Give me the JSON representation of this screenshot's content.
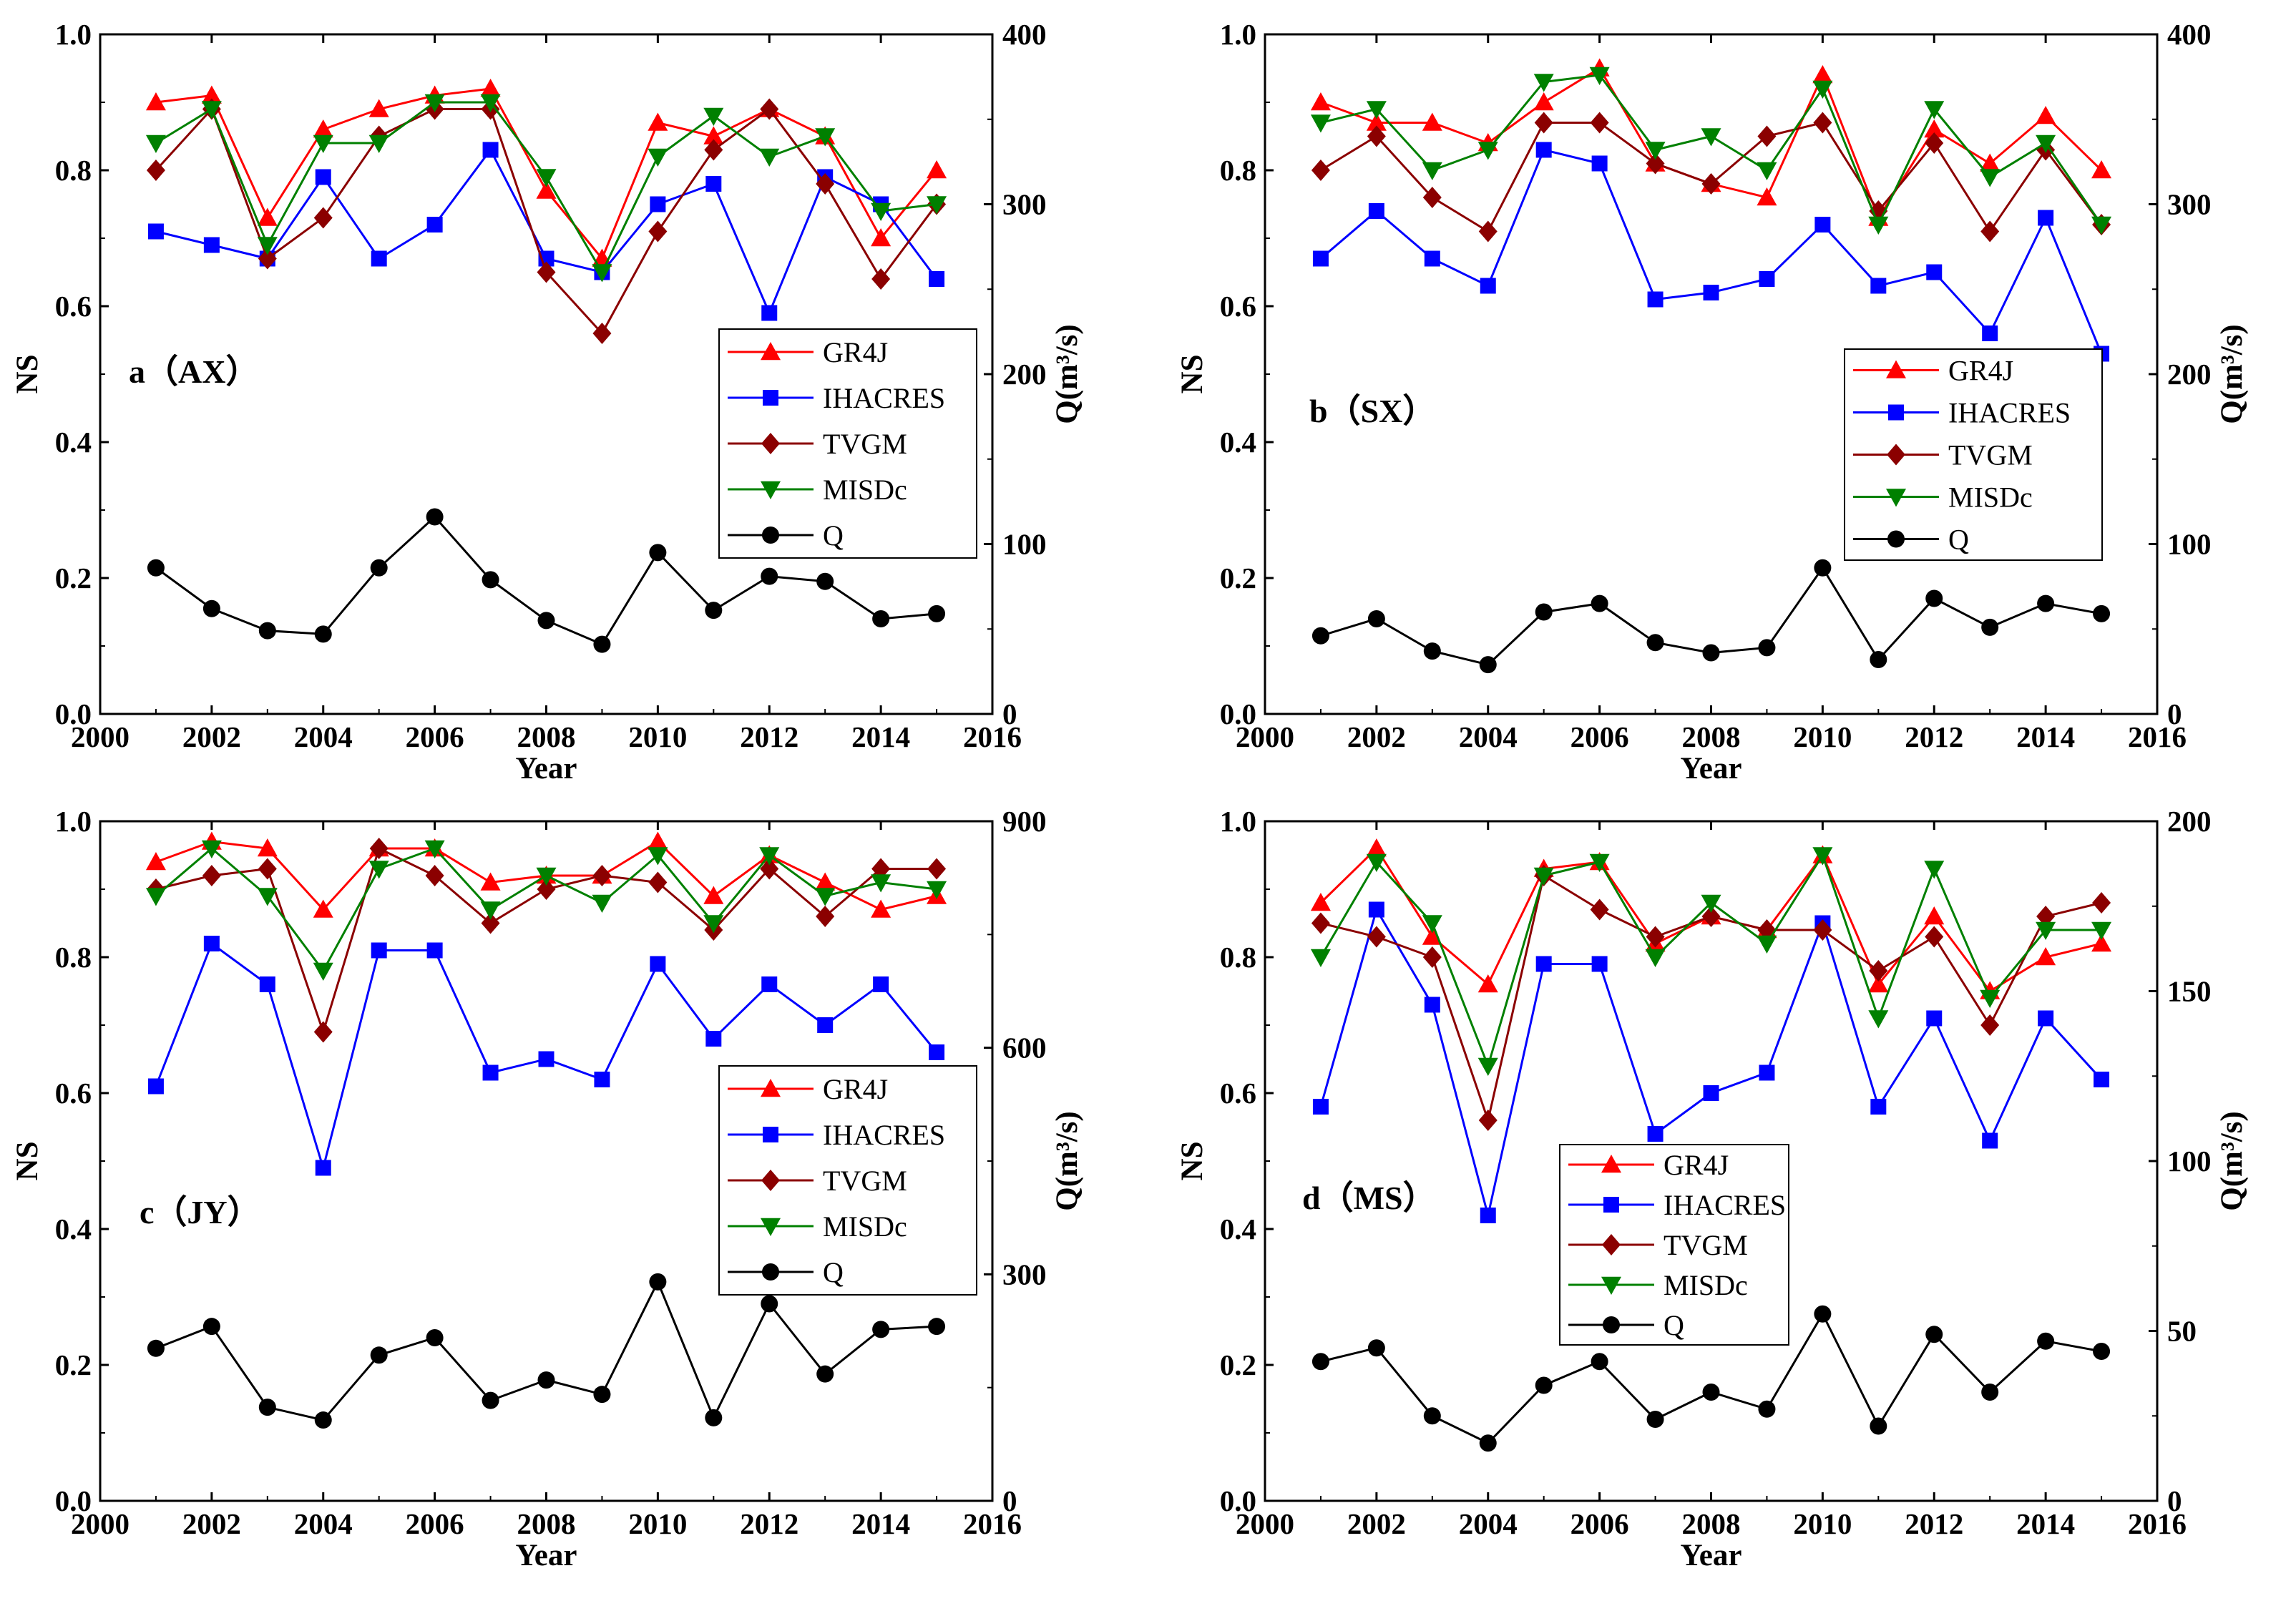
{
  "chart_data": [
    {
      "type": "line",
      "panel_label": "a（AX）",
      "xlabel": "Year",
      "ylabel": "NS",
      "ylabel_right": "Q(m³/s)",
      "xlim": [
        2000,
        2016
      ],
      "ylim": [
        0,
        1
      ],
      "y2lim": [
        0,
        400
      ],
      "xticks": [
        "2000",
        "2002",
        "2004",
        "2006",
        "2008",
        "2010",
        "2012",
        "2014",
        "2016"
      ],
      "yticks": [
        "0.0",
        "0.2",
        "0.4",
        "0.6",
        "0.8",
        "1.0"
      ],
      "y2ticks": [
        "0",
        "100",
        "200",
        "300",
        "400"
      ],
      "legend_position": "middle-right",
      "x": [
        2001,
        2002,
        2003,
        2004,
        2005,
        2006,
        2007,
        2008,
        2009,
        2010,
        2011,
        2012,
        2013,
        2014,
        2015
      ],
      "series": [
        {
          "name": "GR4J",
          "color": "#ff0000",
          "marker": "triangle-up",
          "axis": "left",
          "values": [
            0.9,
            0.91,
            0.73,
            0.86,
            0.89,
            0.91,
            0.92,
            0.77,
            0.67,
            0.87,
            0.85,
            0.89,
            0.85,
            0.7,
            0.8
          ]
        },
        {
          "name": "IHACRES",
          "color": "#0000ff",
          "marker": "square",
          "axis": "left",
          "values": [
            0.71,
            0.69,
            0.67,
            0.79,
            0.67,
            0.72,
            0.83,
            0.67,
            0.65,
            0.75,
            0.78,
            0.59,
            0.79,
            0.75,
            0.64
          ]
        },
        {
          "name": "TVGM",
          "color": "#8b0000",
          "marker": "diamond",
          "axis": "left",
          "values": [
            0.8,
            0.89,
            0.67,
            0.73,
            0.85,
            0.89,
            0.89,
            0.65,
            0.56,
            0.71,
            0.83,
            0.89,
            0.78,
            0.64,
            0.75
          ]
        },
        {
          "name": "MISDc",
          "color": "#008000",
          "marker": "triangle-down",
          "axis": "left",
          "values": [
            0.84,
            0.89,
            0.69,
            0.84,
            0.84,
            0.9,
            0.9,
            0.79,
            0.65,
            0.82,
            0.88,
            0.82,
            0.85,
            0.74,
            0.75
          ]
        },
        {
          "name": "Q",
          "color": "#000000",
          "marker": "circle",
          "axis": "right",
          "values": [
            86,
            62,
            49,
            47,
            86,
            116,
            79,
            55,
            41,
            95,
            61,
            81,
            78,
            56,
            59
          ]
        }
      ]
    },
    {
      "type": "line",
      "panel_label": "b（SX）",
      "xlabel": "Year",
      "ylabel": "NS",
      "ylabel_right": "Q(m³/s)",
      "xlim": [
        2000,
        2016
      ],
      "ylim": [
        0,
        1
      ],
      "y2lim": [
        0,
        400
      ],
      "xticks": [
        "2000",
        "2002",
        "2004",
        "2006",
        "2008",
        "2010",
        "2012",
        "2014",
        "2016"
      ],
      "yticks": [
        "0.0",
        "0.2",
        "0.4",
        "0.6",
        "0.8",
        "1.0"
      ],
      "y2ticks": [
        "0",
        "100",
        "200",
        "300",
        "400"
      ],
      "legend_position": "middle-right",
      "x": [
        2001,
        2002,
        2003,
        2004,
        2005,
        2006,
        2007,
        2008,
        2009,
        2010,
        2011,
        2012,
        2013,
        2014,
        2015
      ],
      "series": [
        {
          "name": "GR4J",
          "color": "#ff0000",
          "marker": "triangle-up",
          "axis": "left",
          "values": [
            0.9,
            0.87,
            0.87,
            0.84,
            0.9,
            0.95,
            0.81,
            0.78,
            0.76,
            0.94,
            0.73,
            0.86,
            0.81,
            0.88,
            0.8
          ]
        },
        {
          "name": "IHACRES",
          "color": "#0000ff",
          "marker": "square",
          "axis": "left",
          "values": [
            0.67,
            0.74,
            0.67,
            0.63,
            0.83,
            0.81,
            0.61,
            0.62,
            0.64,
            0.72,
            0.63,
            0.65,
            0.56,
            0.73,
            0.53
          ]
        },
        {
          "name": "TVGM",
          "color": "#8b0000",
          "marker": "diamond",
          "axis": "left",
          "values": [
            0.8,
            0.85,
            0.76,
            0.71,
            0.87,
            0.87,
            0.81,
            0.78,
            0.85,
            0.87,
            0.74,
            0.84,
            0.71,
            0.83,
            0.72
          ]
        },
        {
          "name": "MISDc",
          "color": "#008000",
          "marker": "triangle-down",
          "axis": "left",
          "values": [
            0.87,
            0.89,
            0.8,
            0.83,
            0.93,
            0.94,
            0.83,
            0.85,
            0.8,
            0.92,
            0.72,
            0.89,
            0.79,
            0.84,
            0.72
          ]
        },
        {
          "name": "Q",
          "color": "#000000",
          "marker": "circle",
          "axis": "right",
          "values": [
            46,
            56,
            37,
            29,
            60,
            65,
            42,
            36,
            39,
            86,
            32,
            68,
            51,
            65,
            59
          ]
        }
      ]
    },
    {
      "type": "line",
      "panel_label": "c（JY）",
      "xlabel": "Year",
      "ylabel": "NS",
      "ylabel_right": "Q(m³/s)",
      "xlim": [
        2000,
        2016
      ],
      "ylim": [
        0,
        1
      ],
      "y2lim": [
        0,
        900
      ],
      "xticks": [
        "2000",
        "2002",
        "2004",
        "2006",
        "2008",
        "2010",
        "2012",
        "2014",
        "2016"
      ],
      "yticks": [
        "0.0",
        "0.2",
        "0.4",
        "0.6",
        "0.8",
        "1.0"
      ],
      "y2ticks": [
        "0",
        "300",
        "600",
        "900"
      ],
      "legend_position": "middle-right",
      "x": [
        2001,
        2002,
        2003,
        2004,
        2005,
        2006,
        2007,
        2008,
        2009,
        2010,
        2011,
        2012,
        2013,
        2014,
        2015
      ],
      "series": [
        {
          "name": "GR4J",
          "color": "#ff0000",
          "marker": "triangle-up",
          "axis": "left",
          "values": [
            0.94,
            0.97,
            0.96,
            0.87,
            0.96,
            0.96,
            0.91,
            0.92,
            0.92,
            0.97,
            0.89,
            0.95,
            0.91,
            0.87,
            0.89
          ]
        },
        {
          "name": "IHACRES",
          "color": "#0000ff",
          "marker": "square",
          "axis": "left",
          "values": [
            0.61,
            0.82,
            0.76,
            0.49,
            0.81,
            0.81,
            0.63,
            0.65,
            0.62,
            0.79,
            0.68,
            0.76,
            0.7,
            0.76,
            0.66
          ]
        },
        {
          "name": "TVGM",
          "color": "#8b0000",
          "marker": "diamond",
          "axis": "left",
          "values": [
            0.9,
            0.92,
            0.93,
            0.69,
            0.96,
            0.92,
            0.85,
            0.9,
            0.92,
            0.91,
            0.84,
            0.93,
            0.86,
            0.93,
            0.93
          ]
        },
        {
          "name": "MISDc",
          "color": "#008000",
          "marker": "triangle-down",
          "axis": "left",
          "values": [
            0.89,
            0.96,
            0.89,
            0.78,
            0.93,
            0.96,
            0.87,
            0.92,
            0.88,
            0.95,
            0.85,
            0.95,
            0.89,
            0.91,
            0.9
          ]
        },
        {
          "name": "Q",
          "color": "#000000",
          "marker": "circle",
          "axis": "right",
          "values": [
            202,
            231,
            124,
            107,
            193,
            216,
            133,
            160,
            141,
            290,
            110,
            261,
            168,
            227,
            231
          ]
        }
      ]
    },
    {
      "type": "line",
      "panel_label": "d（MS）",
      "xlabel": "Year",
      "ylabel": "NS",
      "ylabel_right": "Q(m³/s)",
      "xlim": [
        2000,
        2016
      ],
      "ylim": [
        0,
        1
      ],
      "y2lim": [
        0,
        200
      ],
      "xticks": [
        "2000",
        "2002",
        "2004",
        "2006",
        "2008",
        "2010",
        "2012",
        "2014",
        "2016"
      ],
      "yticks": [
        "0.0",
        "0.2",
        "0.4",
        "0.6",
        "0.8",
        "1.0"
      ],
      "y2ticks": [
        "0",
        "50",
        "100",
        "150",
        "200"
      ],
      "legend_position": "lower-middle",
      "x": [
        2001,
        2002,
        2003,
        2004,
        2005,
        2006,
        2007,
        2008,
        2009,
        2010,
        2011,
        2012,
        2013,
        2014,
        2015
      ],
      "series": [
        {
          "name": "GR4J",
          "color": "#ff0000",
          "marker": "triangle-up",
          "axis": "left",
          "values": [
            0.88,
            0.96,
            0.83,
            0.76,
            0.93,
            0.94,
            0.82,
            0.86,
            0.84,
            0.95,
            0.76,
            0.86,
            0.75,
            0.8,
            0.82
          ]
        },
        {
          "name": "IHACRES",
          "color": "#0000ff",
          "marker": "square",
          "axis": "left",
          "values": [
            0.58,
            0.87,
            0.73,
            0.42,
            0.79,
            0.79,
            0.54,
            0.6,
            0.63,
            0.85,
            0.58,
            0.71,
            0.53,
            0.71,
            0.62
          ]
        },
        {
          "name": "TVGM",
          "color": "#8b0000",
          "marker": "diamond",
          "axis": "left",
          "values": [
            0.85,
            0.83,
            0.8,
            0.56,
            0.92,
            0.87,
            0.83,
            0.86,
            0.84,
            0.84,
            0.78,
            0.83,
            0.7,
            0.86,
            0.88
          ]
        },
        {
          "name": "MISDc",
          "color": "#008000",
          "marker": "triangle-down",
          "axis": "left",
          "values": [
            0.8,
            0.94,
            0.85,
            0.64,
            0.92,
            0.94,
            0.8,
            0.88,
            0.82,
            0.95,
            0.71,
            0.93,
            0.74,
            0.84,
            0.84
          ]
        },
        {
          "name": "Q",
          "color": "#000000",
          "marker": "circle",
          "axis": "right",
          "values": [
            41,
            45,
            25,
            17,
            34,
            41,
            24,
            32,
            27,
            55,
            22,
            49,
            32,
            47,
            44
          ]
        }
      ]
    }
  ]
}
